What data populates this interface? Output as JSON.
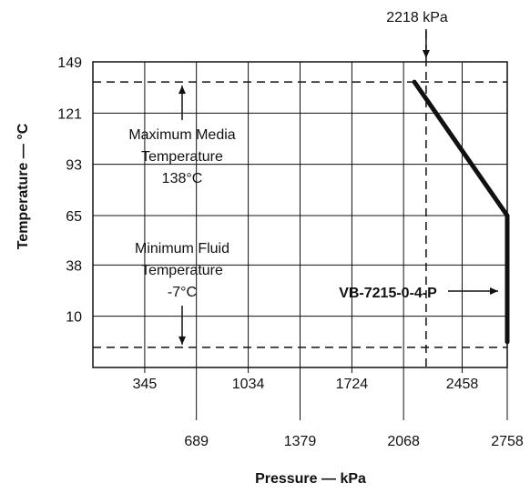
{
  "chart_data": {
    "type": "line",
    "xlabel": "Pressure — kPa",
    "ylabel": "Temperature — °C",
    "xlim": [
      0,
      2758
    ],
    "ylim": [
      -18,
      149
    ],
    "grid": true,
    "x_ticks_upper": [
      "345",
      "1034",
      "1724",
      "2458"
    ],
    "x_ticks_lower": [
      "689",
      "1379",
      "2068",
      "2758"
    ],
    "y_ticks": [
      "149",
      "121",
      "93",
      "65",
      "38",
      "10"
    ],
    "series": [
      {
        "name": "VB-7215-0-4-P",
        "x": [
          2140,
          2758,
          2758
        ],
        "y": [
          138,
          65,
          -4
        ]
      }
    ],
    "reference_lines": {
      "max_temperature": 138,
      "min_temperature": -7,
      "max_pressure": 2218
    },
    "annotations": {
      "max_pressure": "2218 kPa",
      "max_temp": [
        "Maximum Media",
        "Temperature",
        "138°C"
      ],
      "min_temp": [
        "Minimum Fluid",
        "Temperature",
        "-7°C"
      ]
    }
  }
}
